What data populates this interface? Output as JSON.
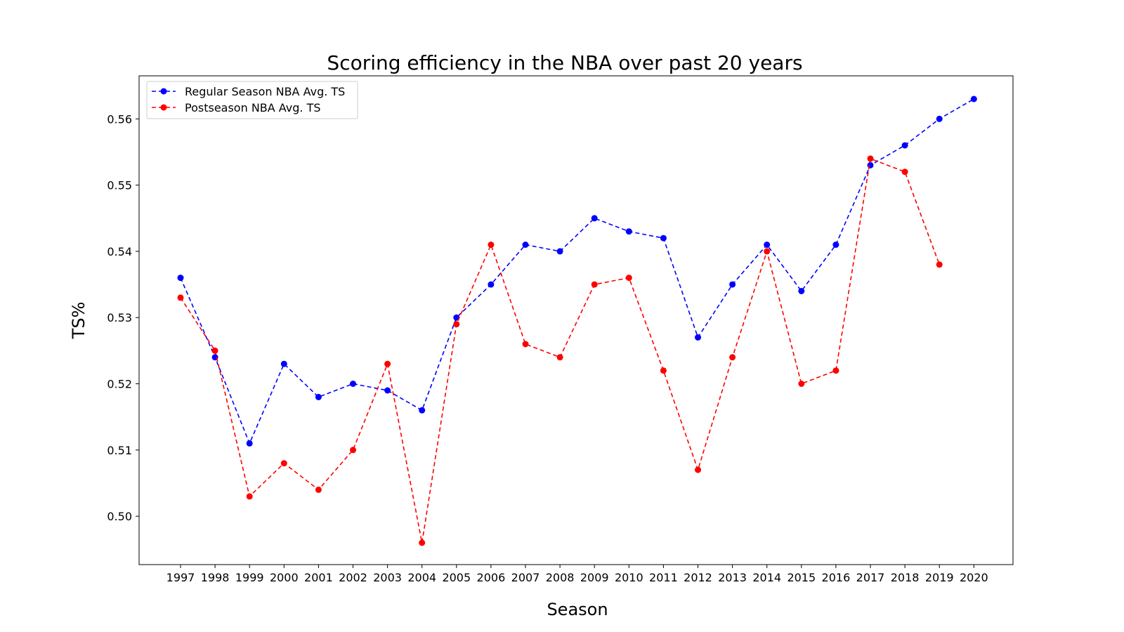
{
  "chart_data": {
    "type": "line",
    "title": "Scoring efficiency in the NBA over past 20 years",
    "xlabel": "Season",
    "ylabel": "TS%",
    "x": [
      "1997",
      "1998",
      "1999",
      "2000",
      "2001",
      "2002",
      "2003",
      "2004",
      "2005",
      "2006",
      "2007",
      "2008",
      "2009",
      "2010",
      "2011",
      "2012",
      "2013",
      "2014",
      "2015",
      "2016",
      "2017",
      "2018",
      "2019",
      "2020"
    ],
    "y_ticks": [
      "0.50",
      "0.51",
      "0.52",
      "0.53",
      "0.54",
      "0.55",
      "0.56"
    ],
    "y_tick_values": [
      0.5,
      0.51,
      0.52,
      0.53,
      0.54,
      0.55,
      0.56
    ],
    "ylim": [
      0.4927,
      0.5665
    ],
    "grid": false,
    "legend_position": "top-left",
    "series": [
      {
        "name": "Regular Season NBA Avg. TS",
        "color": "#0000ff",
        "line_style": "dashed",
        "marker": "circle",
        "values": [
          0.536,
          0.524,
          0.511,
          0.523,
          0.518,
          0.52,
          0.519,
          0.516,
          0.53,
          0.535,
          0.541,
          0.54,
          0.545,
          0.543,
          0.542,
          0.527,
          0.535,
          0.541,
          0.534,
          0.541,
          0.553,
          0.556,
          0.56,
          0.563
        ]
      },
      {
        "name": "Postseason NBA Avg. TS",
        "color": "#ff0000",
        "line_style": "dashed",
        "marker": "circle",
        "values": [
          0.533,
          0.525,
          0.503,
          0.508,
          0.504,
          0.51,
          0.523,
          0.496,
          0.529,
          0.541,
          0.526,
          0.524,
          0.535,
          0.536,
          0.522,
          0.507,
          0.524,
          0.54,
          0.52,
          0.522,
          0.554,
          0.552,
          0.538,
          null
        ]
      }
    ]
  }
}
